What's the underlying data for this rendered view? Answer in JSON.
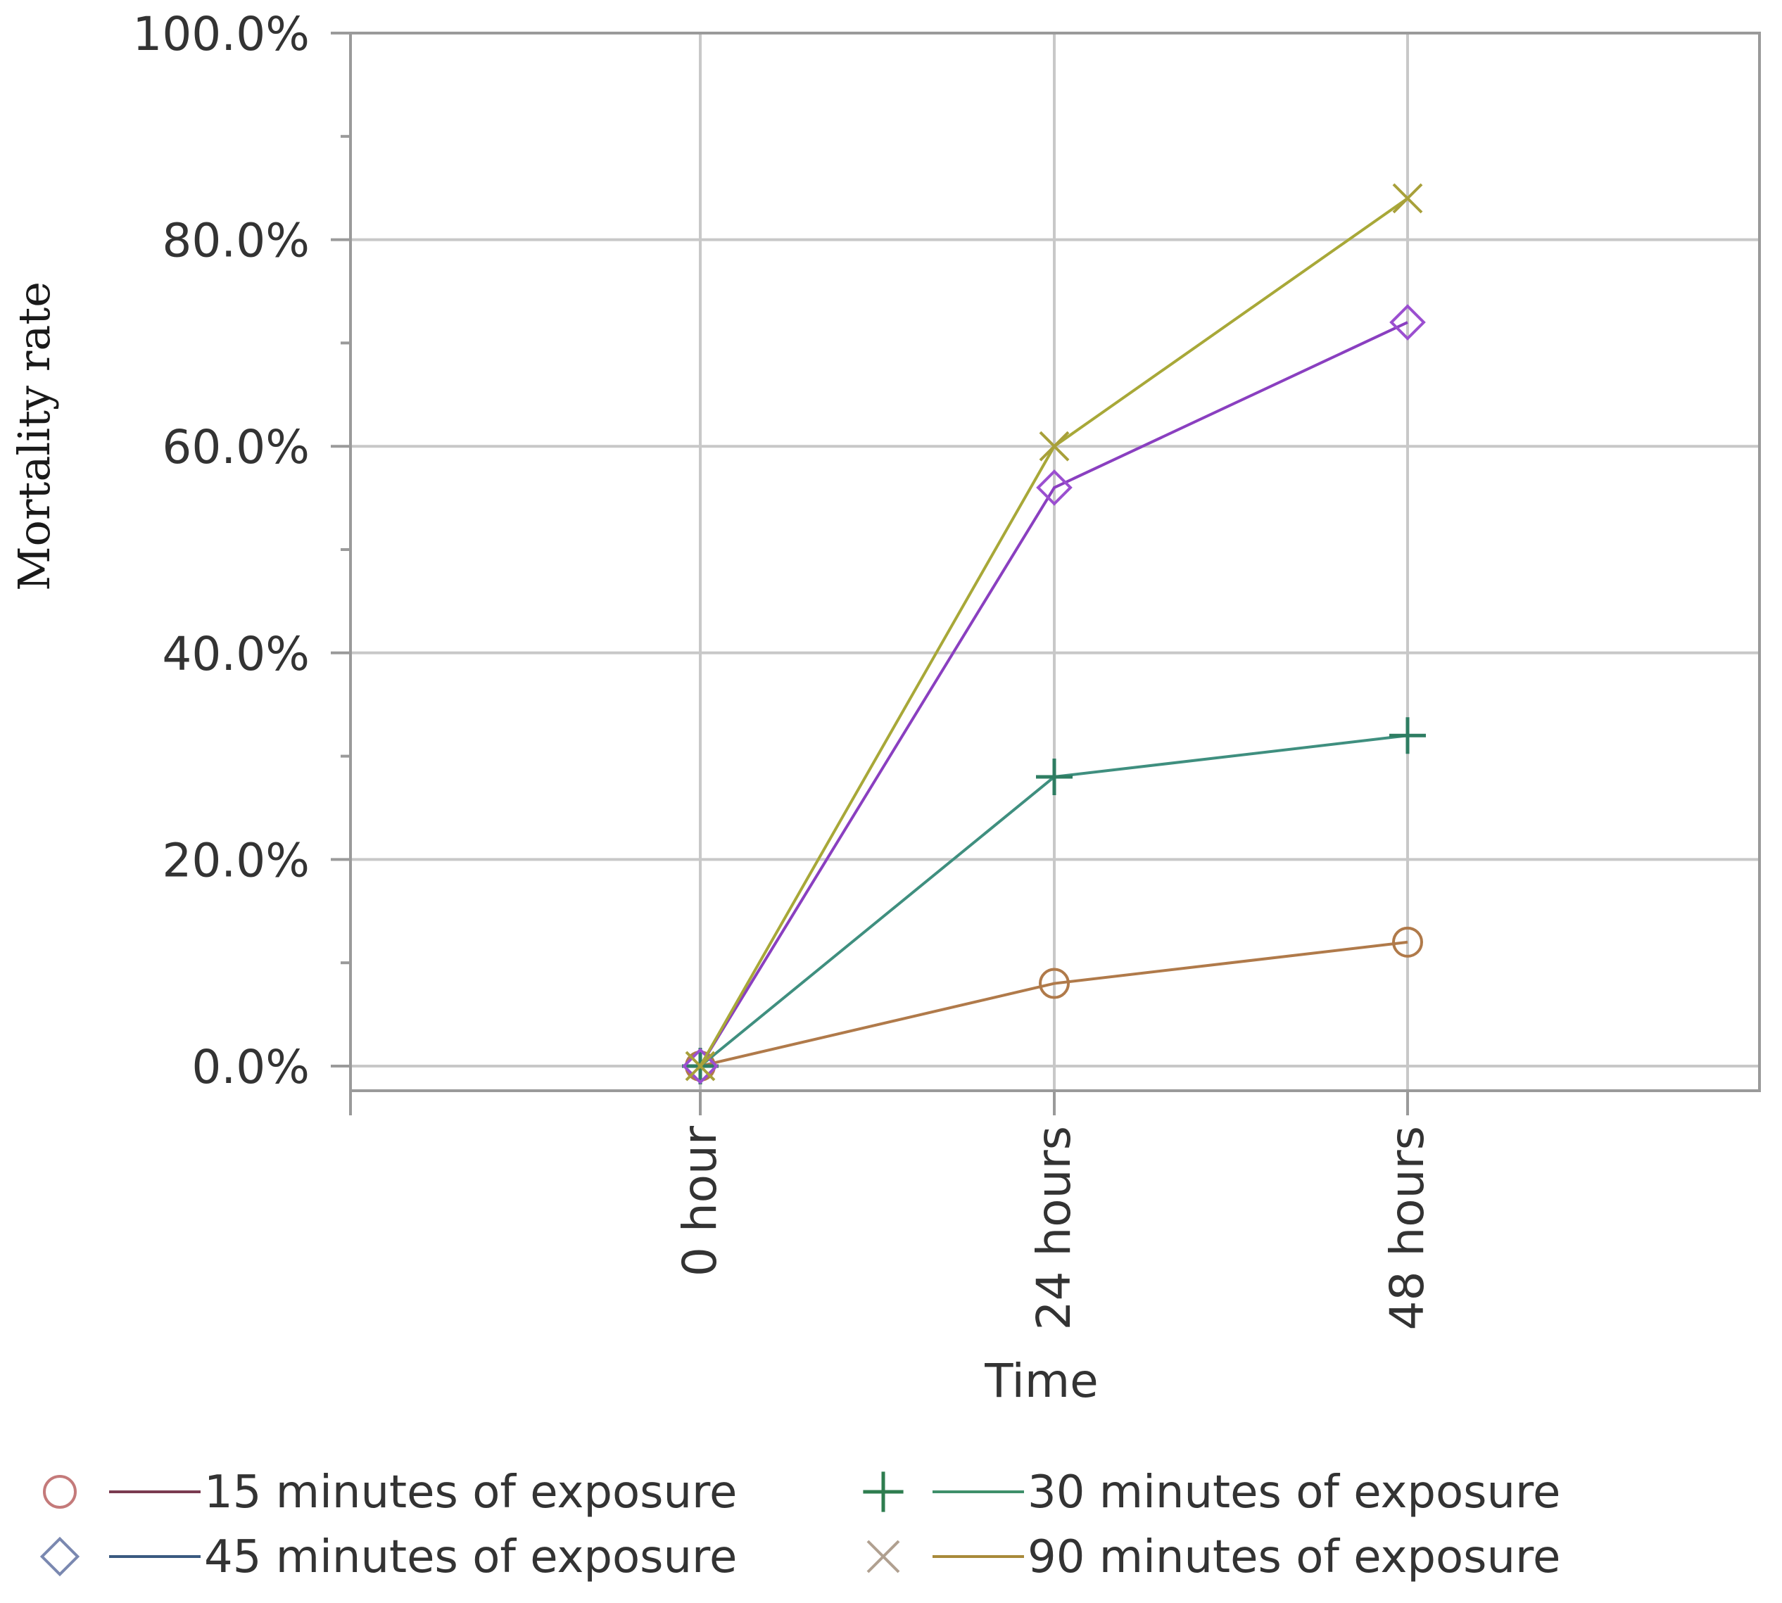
{
  "chart_data": {
    "type": "line",
    "title": "",
    "xlabel": "Time",
    "ylabel": "Mortality rate",
    "categories": [
      "0 hour",
      "24 hours",
      "48 hours"
    ],
    "ylim": [
      0,
      100
    ],
    "yticks": [
      0,
      20,
      40,
      60,
      80,
      100
    ],
    "ytick_labels": [
      "0.0%",
      "20.0%",
      "40.0%",
      "60.0%",
      "80.0%",
      "100.0%"
    ],
    "grid": true,
    "legend_position": "bottom",
    "series": [
      {
        "name": "15 minutes of exposure",
        "values": [
          0,
          8,
          12
        ],
        "line_color": "#b07a4a",
        "marker": "circle",
        "marker_color": "#b07a4a",
        "legend_line_color": "#7a3b50",
        "legend_marker_color": "#c47a7a"
      },
      {
        "name": "30 minutes of exposure",
        "values": [
          0,
          28,
          32
        ],
        "line_color": "#3f8f7f",
        "marker": "plus",
        "marker_color": "#2e7d62",
        "legend_line_color": "#3f8f6a",
        "legend_marker_color": "#2e7d4f"
      },
      {
        "name": "45 minutes of exposure",
        "values": [
          0,
          56,
          72
        ],
        "line_color": "#8a3fc0",
        "marker": "diamond",
        "marker_color": "#9b4fd0",
        "legend_line_color": "#3a5a80",
        "legend_marker_color": "#7a88b0"
      },
      {
        "name": "90 minutes of exposure",
        "values": [
          0,
          60,
          84
        ],
        "line_color": "#a8a838",
        "marker": "x",
        "marker_color": "#a8a03a",
        "legend_line_color": "#a88a3a",
        "legend_marker_color": "#b0a090"
      }
    ]
  },
  "legend": {
    "items": [
      {
        "label": "15 minutes of exposure"
      },
      {
        "label": "30 minutes of exposure"
      },
      {
        "label": "45 minutes of exposure"
      },
      {
        "label": "90 minutes of exposure"
      }
    ]
  },
  "colors": {
    "grid": "#c8c8c8",
    "frame": "#9a9a9a",
    "tick_text": "#333333"
  }
}
